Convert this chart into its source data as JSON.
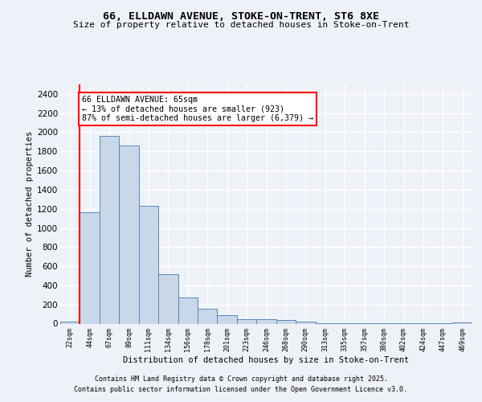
{
  "title1": "66, ELLDAWN AVENUE, STOKE-ON-TRENT, ST6 8XE",
  "title2": "Size of property relative to detached houses in Stoke-on-Trent",
  "xlabel": "Distribution of detached houses by size in Stoke-on-Trent",
  "ylabel": "Number of detached properties",
  "bin_labels": [
    "22sqm",
    "44sqm",
    "67sqm",
    "89sqm",
    "111sqm",
    "134sqm",
    "156sqm",
    "178sqm",
    "201sqm",
    "223sqm",
    "246sqm",
    "268sqm",
    "290sqm",
    "313sqm",
    "335sqm",
    "357sqm",
    "380sqm",
    "402sqm",
    "424sqm",
    "447sqm",
    "469sqm"
  ],
  "bar_heights": [
    25,
    1160,
    1960,
    1860,
    1230,
    520,
    275,
    155,
    90,
    45,
    45,
    40,
    20,
    5,
    5,
    5,
    5,
    5,
    5,
    5,
    10
  ],
  "bar_color": "#c8d8e8",
  "bar_edge_color": "#5588bb",
  "annotation_text": "66 ELLDAWN AVENUE: 65sqm\n← 13% of detached houses are smaller (923)\n87% of semi-detached houses are larger (6,379) →",
  "annotation_box_color": "white",
  "annotation_box_edge_color": "red",
  "red_line_color": "red",
  "ylim": [
    0,
    2500
  ],
  "yticks": [
    0,
    200,
    400,
    600,
    800,
    1000,
    1200,
    1400,
    1600,
    1800,
    2000,
    2200,
    2400
  ],
  "footer1": "Contains HM Land Registry data © Crown copyright and database right 2025.",
  "footer2": "Contains public sector information licensed under the Open Government Licence v3.0.",
  "bg_color": "#eef2f8",
  "grid_color": "#ffffff"
}
